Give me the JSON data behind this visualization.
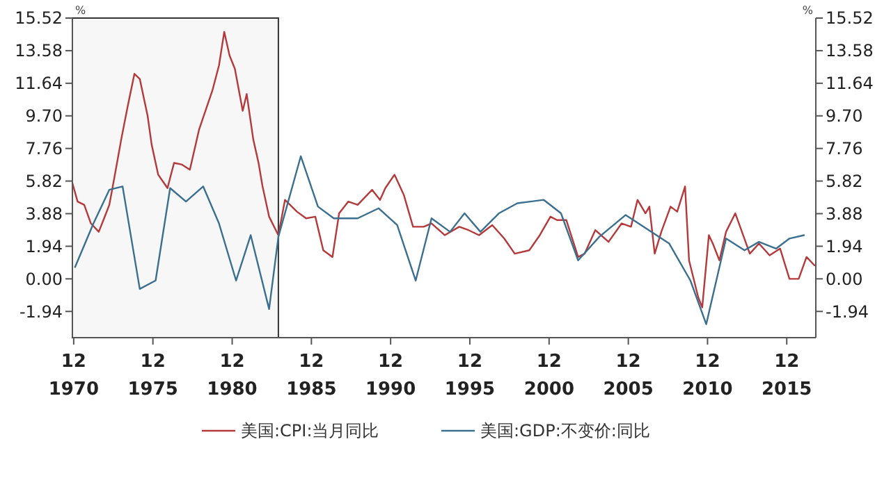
{
  "chart_data": {
    "type": "line",
    "ylabel": "%",
    "y2label": "%",
    "xlim": [
      "1970-11",
      "2017-10"
    ],
    "xticks": [
      {
        "value": "1970-12",
        "label": "12\n1970"
      },
      {
        "value": "1975-12",
        "label": "12\n1975"
      },
      {
        "value": "1980-12",
        "label": "12\n1980"
      },
      {
        "value": "1985-12",
        "label": "12\n1985"
      },
      {
        "value": "1990-12",
        "label": "12\n1990"
      },
      {
        "value": "1995-12",
        "label": "12\n1995"
      },
      {
        "value": "2000-12",
        "label": "12\n2000"
      },
      {
        "value": "2005-12",
        "label": "12\n2005"
      },
      {
        "value": "2010-12",
        "label": "12\n2010"
      },
      {
        "value": "2015-12",
        "label": "12\n2015"
      }
    ],
    "ylim": [
      -3.5,
      15.52
    ],
    "yticks": [
      {
        "value": -1.94,
        "label": "-1.94"
      },
      {
        "value": 0,
        "label": "0.00"
      },
      {
        "value": 1.94,
        "label": "1.94"
      },
      {
        "value": 3.88,
        "label": "3.88"
      },
      {
        "value": 5.82,
        "label": "5.82"
      },
      {
        "value": 7.76,
        "label": "7.76"
      },
      {
        "value": 9.7,
        "label": "9.70"
      },
      {
        "value": 11.64,
        "label": "11.64"
      },
      {
        "value": 13.58,
        "label": "13.58"
      },
      {
        "value": 15.52,
        "label": "15.52"
      }
    ],
    "y2lim": [
      -3.5,
      15.52
    ],
    "y2ticks": [
      {
        "value": -1.94,
        "label": "-1.94"
      },
      {
        "value": 0,
        "label": "0.00"
      },
      {
        "value": 1.94,
        "label": "1.94"
      },
      {
        "value": 3.88,
        "label": "3.88"
      },
      {
        "value": 5.82,
        "label": "5.82"
      },
      {
        "value": 7.76,
        "label": "7.76"
      },
      {
        "value": 9.7,
        "label": "9.70"
      },
      {
        "value": 11.64,
        "label": "11.64"
      },
      {
        "value": 13.58,
        "label": "13.58"
      },
      {
        "value": 15.52,
        "label": "15.52"
      }
    ],
    "grid": false,
    "legend": "bottom",
    "marker": "none",
    "line_style": "solid",
    "bands": [
      {
        "axis": "x",
        "from": "1970-11",
        "to": "1983-11",
        "color": "#333333"
      }
    ],
    "series": [
      {
        "name": "美国:CPI:当月同比",
        "color": "#b5383a",
        "x": [
          "1970-11",
          "1971-03",
          "1971-08",
          "1972-01",
          "1972-07",
          "1972-11",
          "1973-03",
          "1973-07",
          "1973-12",
          "1974-05",
          "1974-10",
          "1975-02",
          "1975-08",
          "1975-11",
          "1976-04",
          "1976-11",
          "1977-04",
          "1977-10",
          "1978-04",
          "1978-11",
          "1979-09",
          "1980-02",
          "1980-06",
          "1980-10",
          "1981-02",
          "1981-08",
          "1981-11",
          "1982-04",
          "1982-08",
          "1982-11",
          "1983-04",
          "1983-11",
          "1984-04",
          "1985-01",
          "1985-08",
          "1986-03",
          "1986-09",
          "1987-04",
          "1987-09",
          "1988-04",
          "1988-11",
          "1989-10",
          "1990-04",
          "1990-08",
          "1991-03",
          "1991-10",
          "1992-05",
          "1993-01",
          "1993-07",
          "1994-05",
          "1995-04",
          "1995-11",
          "1996-07",
          "1997-05",
          "1998-02",
          "1998-10",
          "1999-09",
          "2000-05",
          "2001-01",
          "2001-06",
          "2002-01",
          "2002-10",
          "2003-03",
          "2003-11",
          "2004-09",
          "2005-07",
          "2006-02",
          "2006-07",
          "2007-01",
          "2007-04",
          "2007-08",
          "2008-01",
          "2008-08",
          "2009-01",
          "2009-07",
          "2009-10",
          "2010-05",
          "2010-08",
          "2011-01",
          "2011-04",
          "2011-09",
          "2012-02",
          "2012-09",
          "2013-02",
          "2013-08",
          "2014-03",
          "2014-11",
          "2015-07",
          "2016-02",
          "2016-09",
          "2017-03",
          "2017-09"
        ],
        "values": [
          5.7,
          4.6,
          4.4,
          3.3,
          2.8,
          3.6,
          4.4,
          6.1,
          8.3,
          10.3,
          12.2,
          11.9,
          9.7,
          8.0,
          6.2,
          5.4,
          6.9,
          6.8,
          6.5,
          8.9,
          11.2,
          12.7,
          14.7,
          13.3,
          12.5,
          10.0,
          11.0,
          8.3,
          6.9,
          5.5,
          3.7,
          2.6,
          4.7,
          4.0,
          3.6,
          3.7,
          1.7,
          1.3,
          3.9,
          4.6,
          4.4,
          5.3,
          4.7,
          5.4,
          6.2,
          5.0,
          3.1,
          3.1,
          3.3,
          2.6,
          3.1,
          2.9,
          2.6,
          3.2,
          2.4,
          1.5,
          1.7,
          2.6,
          3.7,
          3.5,
          3.5,
          1.3,
          1.5,
          2.9,
          2.2,
          3.3,
          3.1,
          4.7,
          3.9,
          4.3,
          1.5,
          2.8,
          4.3,
          4.0,
          5.5,
          1.1,
          -1.1,
          -1.7,
          2.6,
          2.1,
          1.1,
          2.8,
          3.9,
          2.8,
          1.5,
          2.1,
          1.4,
          1.8,
          0.0,
          0.0,
          1.3,
          0.8
        ]
      },
      {
        "name": "美国:GDP:不变价:同比",
        "color": "#3a6f8f",
        "x": [
          "1971-01",
          "1972-03",
          "1973-03",
          "1974-01",
          "1975-02",
          "1976-02",
          "1977-01",
          "1978-01",
          "1979-02",
          "1980-02",
          "1981-03",
          "1982-02",
          "1983-04",
          "1983-11",
          "1985-04",
          "1986-05",
          "1987-05",
          "1988-11",
          "1990-03",
          "1991-05",
          "1992-07",
          "1993-07",
          "1994-09",
          "1995-08",
          "1996-08",
          "1997-10",
          "1998-12",
          "2000-08",
          "2001-09",
          "2002-10",
          "2004-02",
          "2005-10",
          "2008-07",
          "2009-11",
          "2010-11",
          "2012-02",
          "2013-04",
          "2014-03",
          "2015-04",
          "2016-02",
          "2017-01"
        ],
        "values": [
          0.7,
          3.3,
          5.3,
          5.5,
          -0.6,
          -0.1,
          5.4,
          4.6,
          5.5,
          3.3,
          -0.1,
          2.6,
          -1.8,
          2.5,
          7.3,
          4.3,
          3.6,
          3.6,
          4.2,
          3.2,
          -0.1,
          3.6,
          2.8,
          3.9,
          2.8,
          3.9,
          4.5,
          4.7,
          3.9,
          1.1,
          2.5,
          3.8,
          2.1,
          -0.1,
          -2.7,
          2.4,
          1.7,
          2.2,
          1.8,
          2.4,
          2.6
        ]
      }
    ]
  }
}
